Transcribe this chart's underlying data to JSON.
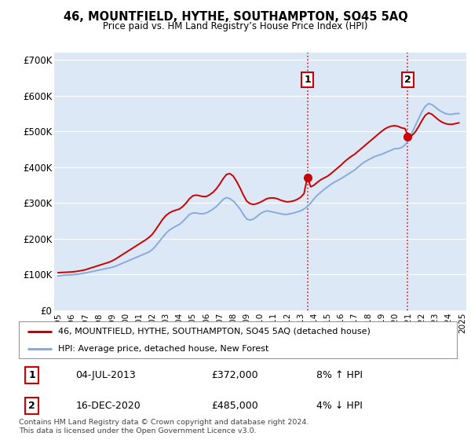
{
  "title": "46, MOUNTFIELD, HYTHE, SOUTHAMPTON, SO45 5AQ",
  "subtitle": "Price paid vs. HM Land Registry’s House Price Index (HPI)",
  "ylabel_ticks": [
    "£0",
    "£100K",
    "£200K",
    "£300K",
    "£400K",
    "£500K",
    "£600K",
    "£700K"
  ],
  "ytick_values": [
    0,
    100000,
    200000,
    300000,
    400000,
    500000,
    600000,
    700000
  ],
  "ylim": [
    0,
    720000
  ],
  "xlim": [
    1994.7,
    2025.3
  ],
  "background_color": "#ffffff",
  "plot_bg_color": "#dce8f5",
  "grid_color": "#ffffff",
  "legend1_label": "46, MOUNTFIELD, HYTHE, SOUTHAMPTON, SO45 5AQ (detached house)",
  "legend2_label": "HPI: Average price, detached house, New Forest",
  "red_line_color": "#cc0000",
  "blue_line_color": "#88aadd",
  "vline1_x": 2013.5,
  "vline2_x": 2020.95,
  "marker1_x": 2013.5,
  "marker1_y": 372000,
  "marker2_x": 2020.95,
  "marker2_y": 485000,
  "annotation1": {
    "num": "1",
    "date": "04-JUL-2013",
    "price": "£372,000",
    "pct": "8% ↑ HPI"
  },
  "annotation2": {
    "num": "2",
    "date": "16-DEC-2020",
    "price": "£485,000",
    "pct": "4% ↓ HPI"
  },
  "copyright_text": "Contains HM Land Registry data © Crown copyright and database right 2024.\nThis data is licensed under the Open Government Licence v3.0.",
  "hpi_values_by_year": {
    "1995.0": 96000,
    "1995.25": 97000,
    "1995.5": 98000,
    "1995.75": 98500,
    "1996.0": 99000,
    "1996.25": 100000,
    "1996.5": 101000,
    "1996.75": 102500,
    "1997.0": 104000,
    "1997.25": 106000,
    "1997.5": 108000,
    "1997.75": 110000,
    "1998.0": 112000,
    "1998.25": 114000,
    "1998.5": 116000,
    "1998.75": 118000,
    "1999.0": 120000,
    "1999.25": 123000,
    "1999.5": 127000,
    "1999.75": 131000,
    "2000.0": 135000,
    "2000.25": 139000,
    "2000.5": 143000,
    "2000.75": 147000,
    "2001.0": 151000,
    "2001.25": 155000,
    "2001.5": 159000,
    "2001.75": 163000,
    "2002.0": 170000,
    "2002.25": 180000,
    "2002.5": 192000,
    "2002.75": 204000,
    "2003.0": 215000,
    "2003.25": 224000,
    "2003.5": 230000,
    "2003.75": 235000,
    "2004.0": 240000,
    "2004.25": 248000,
    "2004.5": 258000,
    "2004.75": 268000,
    "2005.0": 272000,
    "2005.25": 272000,
    "2005.5": 270000,
    "2005.75": 270000,
    "2006.0": 272000,
    "2006.25": 277000,
    "2006.5": 283000,
    "2006.75": 290000,
    "2007.0": 300000,
    "2007.25": 310000,
    "2007.5": 315000,
    "2007.75": 312000,
    "2008.0": 305000,
    "2008.25": 295000,
    "2008.5": 283000,
    "2008.75": 268000,
    "2009.0": 255000,
    "2009.25": 252000,
    "2009.5": 255000,
    "2009.75": 262000,
    "2010.0": 270000,
    "2010.25": 275000,
    "2010.5": 278000,
    "2010.75": 276000,
    "2011.0": 274000,
    "2011.25": 272000,
    "2011.5": 270000,
    "2011.75": 268000,
    "2012.0": 268000,
    "2012.25": 270000,
    "2012.5": 272000,
    "2012.75": 275000,
    "2013.0": 278000,
    "2013.25": 283000,
    "2013.5": 290000,
    "2013.75": 300000,
    "2014.0": 312000,
    "2014.25": 322000,
    "2014.5": 330000,
    "2014.75": 338000,
    "2015.0": 345000,
    "2015.25": 352000,
    "2015.5": 358000,
    "2015.75": 363000,
    "2016.0": 368000,
    "2016.25": 374000,
    "2016.5": 380000,
    "2016.75": 386000,
    "2017.0": 392000,
    "2017.25": 400000,
    "2017.5": 408000,
    "2017.75": 415000,
    "2018.0": 420000,
    "2018.25": 425000,
    "2018.5": 430000,
    "2018.75": 433000,
    "2019.0": 436000,
    "2019.25": 440000,
    "2019.5": 444000,
    "2019.75": 448000,
    "2020.0": 452000,
    "2020.25": 452000,
    "2020.5": 455000,
    "2020.75": 462000,
    "2021.0": 475000,
    "2021.25": 495000,
    "2021.5": 515000,
    "2021.75": 535000,
    "2022.0": 555000,
    "2022.25": 570000,
    "2022.5": 578000,
    "2022.75": 575000,
    "2023.0": 568000,
    "2023.25": 560000,
    "2023.5": 555000,
    "2023.75": 550000,
    "2024.0": 548000,
    "2024.25": 548000,
    "2024.5": 550000,
    "2024.75": 550000
  },
  "price_values_by_year": {
    "1995.0": 105000,
    "1995.25": 105500,
    "1995.5": 106000,
    "1995.75": 106500,
    "1996.0": 107000,
    "1996.25": 108000,
    "1996.5": 109500,
    "1996.75": 111000,
    "1997.0": 113000,
    "1997.25": 116000,
    "1997.5": 119000,
    "1997.75": 122000,
    "1998.0": 125000,
    "1998.25": 128000,
    "1998.5": 131000,
    "1998.75": 134000,
    "1999.0": 138000,
    "1999.25": 143000,
    "1999.5": 149000,
    "1999.75": 155000,
    "2000.0": 161000,
    "2000.25": 167000,
    "2000.5": 173000,
    "2000.75": 179000,
    "2001.0": 185000,
    "2001.25": 191000,
    "2001.5": 197000,
    "2001.75": 204000,
    "2002.0": 213000,
    "2002.25": 226000,
    "2002.5": 240000,
    "2002.75": 254000,
    "2003.0": 265000,
    "2003.25": 272000,
    "2003.5": 277000,
    "2003.75": 280000,
    "2004.0": 283000,
    "2004.25": 290000,
    "2004.5": 300000,
    "2004.75": 312000,
    "2005.0": 320000,
    "2005.25": 322000,
    "2005.5": 320000,
    "2005.75": 318000,
    "2006.0": 318000,
    "2006.25": 323000,
    "2006.5": 330000,
    "2006.75": 340000,
    "2007.0": 353000,
    "2007.25": 368000,
    "2007.5": 380000,
    "2007.75": 382000,
    "2008.0": 375000,
    "2008.25": 360000,
    "2008.5": 342000,
    "2008.75": 322000,
    "2009.0": 305000,
    "2009.25": 298000,
    "2009.5": 296000,
    "2009.75": 298000,
    "2010.0": 302000,
    "2010.25": 307000,
    "2010.5": 312000,
    "2010.75": 314000,
    "2011.0": 314000,
    "2011.25": 312000,
    "2011.5": 308000,
    "2011.75": 305000,
    "2012.0": 303000,
    "2012.25": 304000,
    "2012.5": 306000,
    "2012.75": 310000,
    "2013.0": 316000,
    "2013.25": 326000,
    "2013.5": 372000,
    "2013.75": 345000,
    "2014.0": 350000,
    "2014.25": 358000,
    "2014.5": 365000,
    "2014.75": 370000,
    "2015.0": 375000,
    "2015.25": 382000,
    "2015.5": 390000,
    "2015.75": 398000,
    "2016.0": 406000,
    "2016.25": 415000,
    "2016.5": 423000,
    "2016.75": 430000,
    "2017.0": 436000,
    "2017.25": 444000,
    "2017.5": 452000,
    "2017.75": 460000,
    "2018.0": 468000,
    "2018.25": 476000,
    "2018.5": 484000,
    "2018.75": 492000,
    "2019.0": 500000,
    "2019.25": 507000,
    "2019.5": 512000,
    "2019.75": 515000,
    "2020.0": 516000,
    "2020.25": 514000,
    "2020.5": 510000,
    "2020.75": 508000,
    "2021.0": 485000,
    "2021.25": 488000,
    "2021.5": 498000,
    "2021.75": 513000,
    "2022.0": 530000,
    "2022.25": 545000,
    "2022.5": 552000,
    "2022.75": 548000,
    "2023.0": 540000,
    "2023.25": 532000,
    "2023.5": 526000,
    "2023.75": 522000,
    "2024.0": 520000,
    "2024.25": 520000,
    "2024.5": 522000,
    "2024.75": 524000
  }
}
